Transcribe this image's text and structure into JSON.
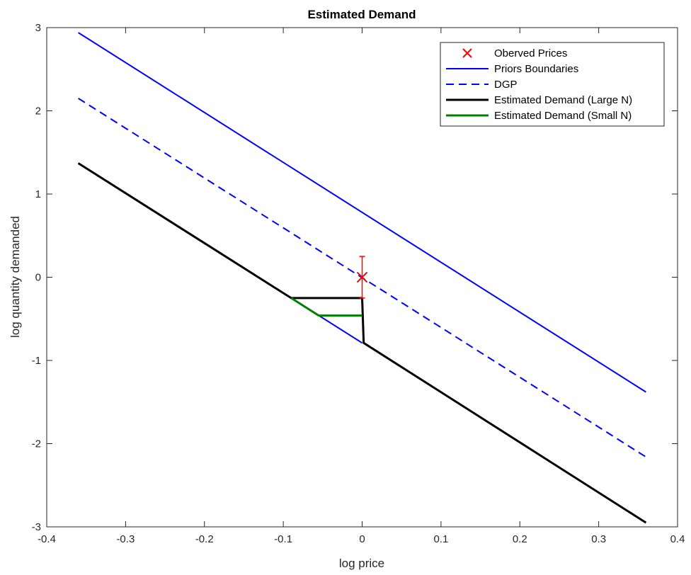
{
  "chart_data": {
    "type": "line",
    "title": "Estimated Demand",
    "xlabel": "log price",
    "ylabel": "log quantity demanded",
    "xlim": [
      -0.4,
      0.4
    ],
    "ylim": [
      -3,
      3
    ],
    "xticks": [
      -0.4,
      -0.3,
      -0.2,
      -0.1,
      0,
      0.1,
      0.2,
      0.3,
      0.4
    ],
    "xtick_labels": [
      "-0.4",
      "-0.3",
      "-0.2",
      "-0.1",
      "0",
      "0.1",
      "0.2",
      "0.3",
      "0.4"
    ],
    "yticks": [
      -3,
      -2,
      -1,
      0,
      1,
      2,
      3
    ],
    "ytick_labels": [
      "-3",
      "-2",
      "-1",
      "0",
      "1",
      "2",
      "3"
    ],
    "grid": false,
    "legend_position": "top-right",
    "series": [
      {
        "name": "Oberved Prices",
        "kind": "marker",
        "color": "#ff0000",
        "marker": "x",
        "points": [
          {
            "x": 0,
            "y": 0
          }
        ],
        "error_bar": {
          "x": 0,
          "low": -0.25,
          "high": 0.25
        }
      },
      {
        "name": "Priors Boundaries",
        "kind": "line",
        "color": "#0000ff",
        "dash": "solid",
        "segments": [
          [
            [
              -0.36,
              2.94
            ],
            [
              0.36,
              -1.38
            ]
          ],
          [
            [
              -0.36,
              1.37
            ],
            [
              0,
              -0.79
            ]
          ]
        ]
      },
      {
        "name": "DGP",
        "kind": "line",
        "color": "#0000ff",
        "dash": "dashed",
        "segments": [
          [
            [
              -0.36,
              2.15
            ],
            [
              0.36,
              -2.16
            ]
          ]
        ]
      },
      {
        "name": "Estimated Demand (Large N)",
        "kind": "line",
        "color": "#000000",
        "dash": "solid",
        "segments": [
          [
            [
              -0.36,
              1.37
            ],
            [
              -0.09,
              -0.25
            ],
            [
              0,
              -0.25
            ],
            [
              0.002,
              -0.79
            ],
            [
              0.36,
              -2.95
            ]
          ]
        ]
      },
      {
        "name": "Estimated Demand (Small N)",
        "kind": "line",
        "color": "#008000",
        "dash": "solid",
        "segments": [
          [
            [
              -0.09,
              -0.25
            ],
            [
              -0.055,
              -0.46
            ],
            [
              0,
              -0.46
            ]
          ]
        ]
      }
    ]
  }
}
